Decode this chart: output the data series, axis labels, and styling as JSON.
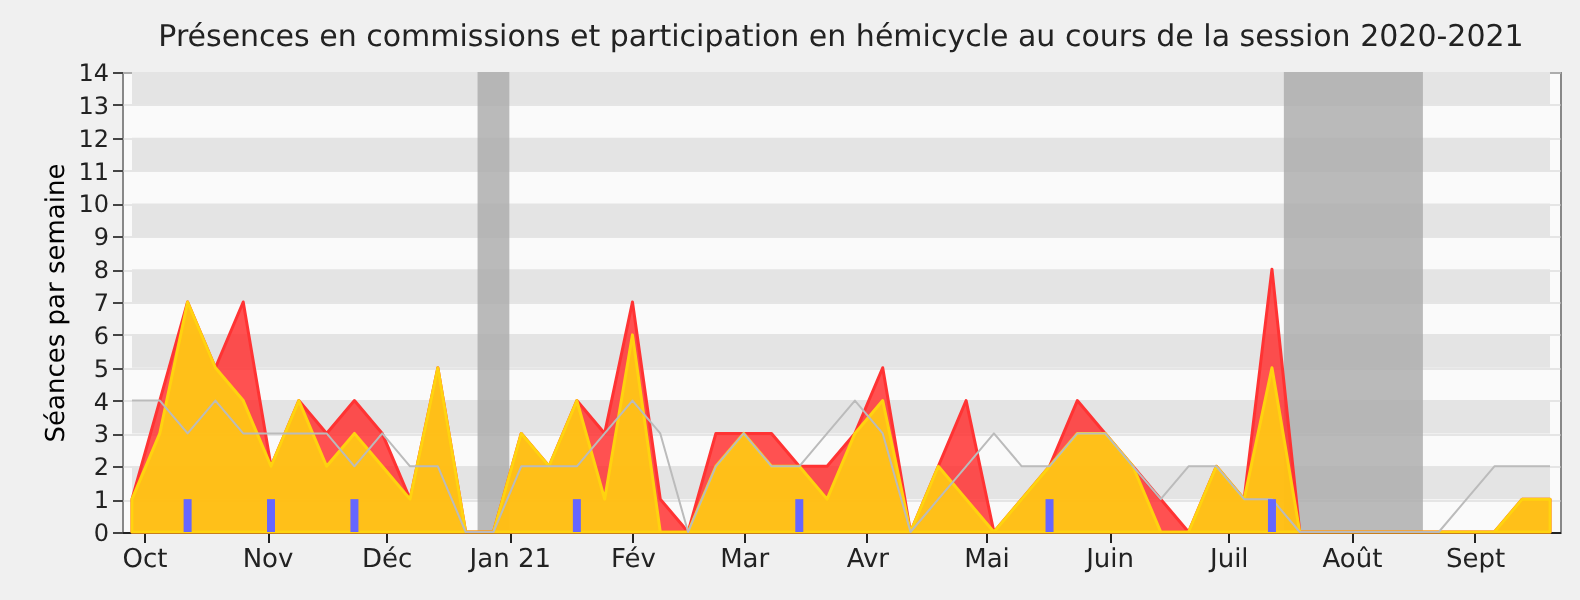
{
  "chart_data": {
    "type": "area",
    "title": "Présences en commissions et participation en hémicycle au cours de la session 2020-2021",
    "ylabel": "Séances par semaine",
    "x": [
      "2020-09-28",
      "2020-10-05",
      "2020-10-12",
      "2020-10-19",
      "2020-10-26",
      "2020-11-02",
      "2020-11-09",
      "2020-11-16",
      "2020-11-23",
      "2020-11-30",
      "2020-12-07",
      "2020-12-14",
      "2020-12-21",
      "2020-12-28",
      "2021-01-04",
      "2021-01-11",
      "2021-01-18",
      "2021-01-25",
      "2021-02-01",
      "2021-02-08",
      "2021-02-15",
      "2021-02-22",
      "2021-03-01",
      "2021-03-08",
      "2021-03-15",
      "2021-03-22",
      "2021-03-29",
      "2021-04-05",
      "2021-04-12",
      "2021-04-19",
      "2021-04-26",
      "2021-05-03",
      "2021-05-10",
      "2021-05-17",
      "2021-05-24",
      "2021-05-31",
      "2021-06-07",
      "2021-06-14",
      "2021-06-21",
      "2021-06-28",
      "2021-07-05",
      "2021-07-12",
      "2021-07-19",
      "2021-07-26",
      "2021-08-02",
      "2021-08-09",
      "2021-08-16",
      "2021-08-23",
      "2021-08-30",
      "2021-09-06",
      "2021-09-13",
      "2021-09-20"
    ],
    "series": [
      {
        "color": "#ff3333",
        "values": [
          1,
          4,
          7,
          5,
          7,
          2,
          4,
          3,
          4,
          3,
          1,
          5,
          0,
          0,
          3,
          2,
          4,
          3,
          7,
          1,
          0,
          3,
          3,
          3,
          2,
          2,
          3,
          5,
          0,
          2,
          4,
          0,
          1,
          2,
          4,
          3,
          2,
          1,
          0,
          2,
          1,
          8,
          0,
          0,
          0,
          0,
          0,
          0,
          0,
          0,
          1,
          1
        ]
      },
      {
        "color": "#ffd30f",
        "values": [
          1,
          3,
          7,
          5,
          4,
          2,
          4,
          2,
          3,
          2,
          1,
          5,
          0,
          0,
          3,
          2,
          4,
          1,
          6,
          0,
          0,
          2,
          3,
          2,
          2,
          1,
          3,
          4,
          0,
          2,
          1,
          0,
          1,
          2,
          3,
          3,
          2,
          0,
          0,
          2,
          1,
          5,
          0,
          0,
          0,
          0,
          0,
          0,
          0,
          0,
          1,
          1
        ]
      },
      {
        "type": "line",
        "color": "#bbbbbb",
        "values": [
          4,
          4,
          3,
          4,
          3,
          3,
          3,
          3,
          2,
          3,
          2,
          2,
          0,
          0,
          2,
          2,
          2,
          3,
          4,
          3,
          0,
          2,
          3,
          2,
          2,
          3,
          4,
          3,
          0,
          1,
          2,
          3,
          2,
          2,
          3,
          3,
          2,
          1,
          2,
          2,
          1,
          1,
          0,
          0,
          0,
          0,
          0,
          0,
          1,
          2,
          2,
          2
        ]
      },
      {
        "type": "bar",
        "color": "#6666ff",
        "values": [
          null,
          null,
          1,
          null,
          null,
          1,
          null,
          null,
          1,
          null,
          null,
          null,
          null,
          null,
          null,
          null,
          1,
          null,
          null,
          null,
          null,
          null,
          null,
          null,
          1,
          null,
          null,
          null,
          null,
          null,
          null,
          null,
          null,
          1,
          null,
          null,
          null,
          null,
          null,
          null,
          null,
          1,
          null,
          null,
          null,
          null,
          null,
          null,
          null,
          null,
          null,
          null
        ]
      }
    ],
    "xlim": [
      "2020-09-28",
      "2021-09-20"
    ],
    "xticks": [
      {
        "value": "2020-10-01",
        "label": "Oct"
      },
      {
        "value": "2020-11-01",
        "label": "Nov"
      },
      {
        "value": "2020-12-01",
        "label": "Déc"
      },
      {
        "value": "2021-01-01",
        "label": "Jan 21"
      },
      {
        "value": "2021-02-01",
        "label": "Fév"
      },
      {
        "value": "2021-03-01",
        "label": "Mar"
      },
      {
        "value": "2021-04-01",
        "label": "Avr"
      },
      {
        "value": "2021-05-01",
        "label": "Mai"
      },
      {
        "value": "2021-06-01",
        "label": "Juin"
      },
      {
        "value": "2021-07-01",
        "label": "Juil"
      },
      {
        "value": "2021-08-01",
        "label": "Août"
      },
      {
        "value": "2021-09-01",
        "label": "Sept"
      }
    ],
    "ylim": [
      0,
      14
    ],
    "yticks": [
      0,
      1,
      2,
      3,
      4,
      5,
      6,
      7,
      8,
      9,
      10,
      11,
      12,
      13,
      14
    ],
    "bands": [
      {
        "axis": "x",
        "from": "2020-12-24",
        "to": "2021-01-01",
        "color": "#aaaaaa"
      },
      {
        "axis": "x",
        "from": "2021-07-15",
        "to": "2021-08-19",
        "color": "#aaaaaa"
      }
    ],
    "grid": true
  }
}
